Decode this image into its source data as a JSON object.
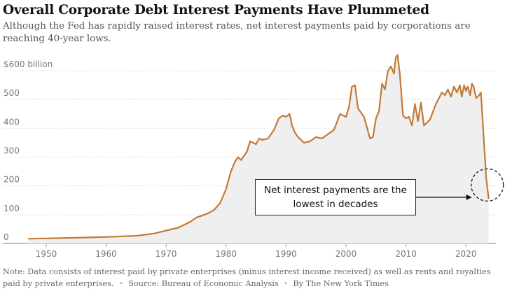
{
  "header": {
    "title": "Overall Corporate Debt Interest Payments Have Plummeted",
    "subtitle": "Although the Fed has rapidly raised interest rates, net interest payments paid by corporations are reaching 40-year lows."
  },
  "footer": {
    "note": "Note: Data consists of interest paid by private enterprises (minus interest income received) as well as rents and royalties paid by private enterprises.",
    "source": "Source: Bureau of Economic Analysis",
    "credit": "By The New York Times"
  },
  "annotation": {
    "text": "Net interest payments are the lowest in decades"
  },
  "colors": {
    "line": "#c27a36",
    "area": "#efefef",
    "grid": "#d9d9d9",
    "axis": "#777777"
  },
  "chart_data": {
    "type": "area",
    "title": "Overall Corporate Debt Interest Payments Have Plummeted",
    "ylabel": "",
    "xlabel": "",
    "y_ticks": [
      "$600 billion",
      "500",
      "400",
      "300",
      "200",
      "100",
      "0"
    ],
    "y_tick_values": [
      600,
      500,
      400,
      300,
      200,
      100,
      0
    ],
    "x_ticks": [
      "1950",
      "1960",
      "1970",
      "1980",
      "1990",
      "2000",
      "2010",
      "2020"
    ],
    "x_tick_values": [
      1950,
      1960,
      1970,
      1980,
      1990,
      2000,
      2010,
      2020
    ],
    "xlim": [
      1946.5,
      2025
    ],
    "ylim": [
      0,
      660
    ],
    "grid": true,
    "series": [
      {
        "name": "",
        "x": [
          1947,
          1950,
          1955,
          1960,
          1965,
          1968,
          1970,
          1972,
          1974,
          1975,
          1976,
          1977,
          1978,
          1979,
          1980,
          1980.8,
          1981.5,
          1982,
          1982.5,
          1983,
          1983.5,
          1984,
          1985,
          1985.5,
          1986,
          1987,
          1988,
          1988.8,
          1989.5,
          1990,
          1990.6,
          1991,
          1991.5,
          1992,
          1993,
          1994,
          1995,
          1996,
          1997,
          1998,
          1999,
          2000,
          2000.5,
          2001,
          2001.5,
          2002,
          2003,
          2004,
          2004.5,
          2005,
          2005.5,
          2006,
          2006.5,
          2007,
          2007.5,
          2008,
          2008.3,
          2008.6,
          2009,
          2009.5,
          2010,
          2010.5,
          2011,
          2011.5,
          2012,
          2012.5,
          2013,
          2014,
          2015,
          2016,
          2016.5,
          2017,
          2017.5,
          2018,
          2018.5,
          2019,
          2019.3,
          2019.7,
          2020,
          2020.3,
          2020.7,
          2021,
          2021.3,
          2021.7,
          2022,
          2022.5,
          2023,
          2023.4,
          2023.8
        ],
        "values": [
          2,
          3,
          5,
          8,
          12,
          20,
          30,
          40,
          60,
          75,
          82,
          90,
          102,
          125,
          175,
          235,
          270,
          285,
          275,
          290,
          305,
          340,
          330,
          350,
          345,
          350,
          380,
          420,
          430,
          425,
          435,
          395,
          370,
          355,
          335,
          340,
          355,
          350,
          365,
          380,
          435,
          425,
          460,
          530,
          535,
          455,
          425,
          350,
          355,
          420,
          445,
          540,
          520,
          585,
          600,
          575,
          630,
          640,
          570,
          430,
          420,
          425,
          395,
          470,
          410,
          475,
          395,
          415,
          470,
          510,
          500,
          520,
          495,
          530,
          510,
          535,
          495,
          535,
          515,
          530,
          500,
          540,
          530,
          490,
          495,
          510,
          340,
          210,
          140
        ]
      }
    ],
    "annotation": {
      "text": "Net interest payments are the lowest in decades",
      "x": 2023.8,
      "y": 140
    }
  }
}
